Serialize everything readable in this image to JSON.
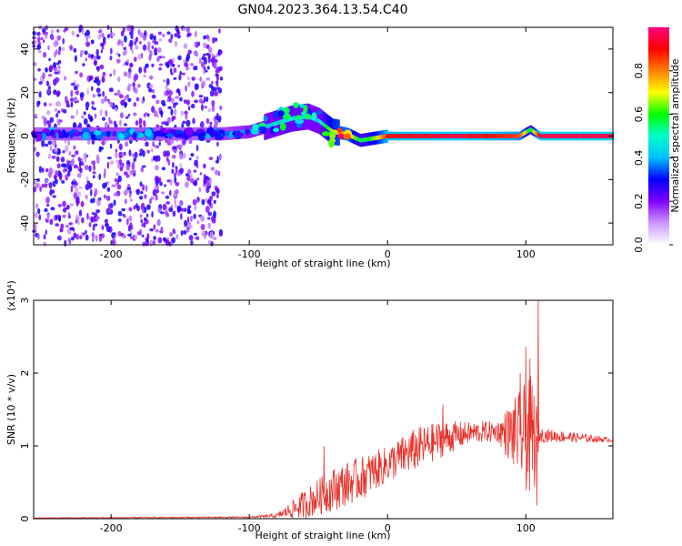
{
  "figure": {
    "title": "GN04.2023.364.13.54.C40"
  },
  "chart_data": [
    {
      "type": "heatmap",
      "xlabel": "Height of straight line (km)",
      "ylabel": "Frequency (Hz)",
      "xlim": [
        -256,
        163
      ],
      "ylim": [
        -50,
        50
      ],
      "xticks": [
        -200,
        -100,
        0,
        100
      ],
      "yticks": [
        -40,
        -20,
        0,
        20,
        40
      ],
      "colorbar": {
        "label": "Normalized spectral amplitude",
        "range": [
          0,
          1
        ],
        "ticks": [
          0.0,
          0.2,
          0.4,
          0.6,
          0.8
        ],
        "colors": [
          "#ffffff",
          "#cc99ff",
          "#7f00ff",
          "#0000ff",
          "#00bfff",
          "#00ffcc",
          "#00ff00",
          "#ffff00",
          "#ff8000",
          "#ff0000",
          "#ff0080"
        ]
      },
      "ridge": [
        {
          "x": -256,
          "f": 1,
          "a": 0.3
        },
        {
          "x": -200,
          "f": 1,
          "a": 0.35
        },
        {
          "x": -140,
          "f": 1,
          "a": 0.3
        },
        {
          "x": -120,
          "f": 1,
          "a": 0.35
        },
        {
          "x": -100,
          "f": 2,
          "a": 0.4
        },
        {
          "x": -85,
          "f": 5,
          "a": 0.45
        },
        {
          "x": -70,
          "f": 8,
          "a": 0.5
        },
        {
          "x": -58,
          "f": 9,
          "a": 0.45
        },
        {
          "x": -50,
          "f": 7,
          "a": 0.45
        },
        {
          "x": -40,
          "f": 2,
          "a": 0.7
        },
        {
          "x": -30,
          "f": 1,
          "a": 0.8
        },
        {
          "x": -20,
          "f": -2,
          "a": 0.55
        },
        {
          "x": -10,
          "f": -1,
          "a": 0.65
        },
        {
          "x": 0,
          "f": 0,
          "a": 0.9
        },
        {
          "x": 50,
          "f": 0,
          "a": 0.95
        },
        {
          "x": 95,
          "f": 0,
          "a": 0.85
        },
        {
          "x": 103,
          "f": 3,
          "a": 0.55
        },
        {
          "x": 110,
          "f": 0,
          "a": 0.95
        },
        {
          "x": 163,
          "f": 0,
          "a": 0.95
        }
      ],
      "noise_region": {
        "x": [
          -256,
          -120
        ],
        "f": [
          -50,
          50
        ],
        "amplitude_max": 0.25
      }
    },
    {
      "type": "line",
      "xlabel": "Height of straight line (km)",
      "ylabel": "SNR (10 * v/v)",
      "y_multiplier": "(x10⁴)",
      "xlim": [
        -256,
        163
      ],
      "ylim": [
        0,
        3
      ],
      "xticks": [
        -200,
        -100,
        0,
        100
      ],
      "yticks": [
        0,
        1,
        2,
        3
      ],
      "series": [
        {
          "color": "#e8312a",
          "envelope": [
            {
              "x": -256,
              "y": 0.01,
              "amp": 0.005
            },
            {
              "x": -100,
              "y": 0.02,
              "amp": 0.01
            },
            {
              "x": -80,
              "y": 0.04,
              "amp": 0.03
            },
            {
              "x": -60,
              "y": 0.2,
              "amp": 0.2
            },
            {
              "x": -40,
              "y": 0.4,
              "amp": 0.3
            },
            {
              "x": -20,
              "y": 0.55,
              "amp": 0.3
            },
            {
              "x": 0,
              "y": 0.75,
              "amp": 0.25
            },
            {
              "x": 20,
              "y": 0.95,
              "amp": 0.3
            },
            {
              "x": 40,
              "y": 1.1,
              "amp": 0.25
            },
            {
              "x": 60,
              "y": 1.18,
              "amp": 0.15
            },
            {
              "x": 80,
              "y": 1.2,
              "amp": 0.15
            },
            {
              "x": 95,
              "y": 1.15,
              "amp": 0.6
            },
            {
              "x": 105,
              "y": 1.1,
              "amp": 0.9
            },
            {
              "x": 110,
              "y": 1.15,
              "amp": 0.1
            },
            {
              "x": 163,
              "y": 1.08,
              "amp": 0.03
            }
          ],
          "peaks": [
            {
              "x": 100,
              "y": 2.36
            },
            {
              "x": 103,
              "y": 2.2
            },
            {
              "x": 109,
              "y": 3.0
            },
            {
              "x": 108,
              "y": 0.18
            },
            {
              "x": 96,
              "y": 2.0
            },
            {
              "x": 40,
              "y": 1.57
            },
            {
              "x": -46,
              "y": 1.0
            }
          ]
        }
      ]
    }
  ]
}
